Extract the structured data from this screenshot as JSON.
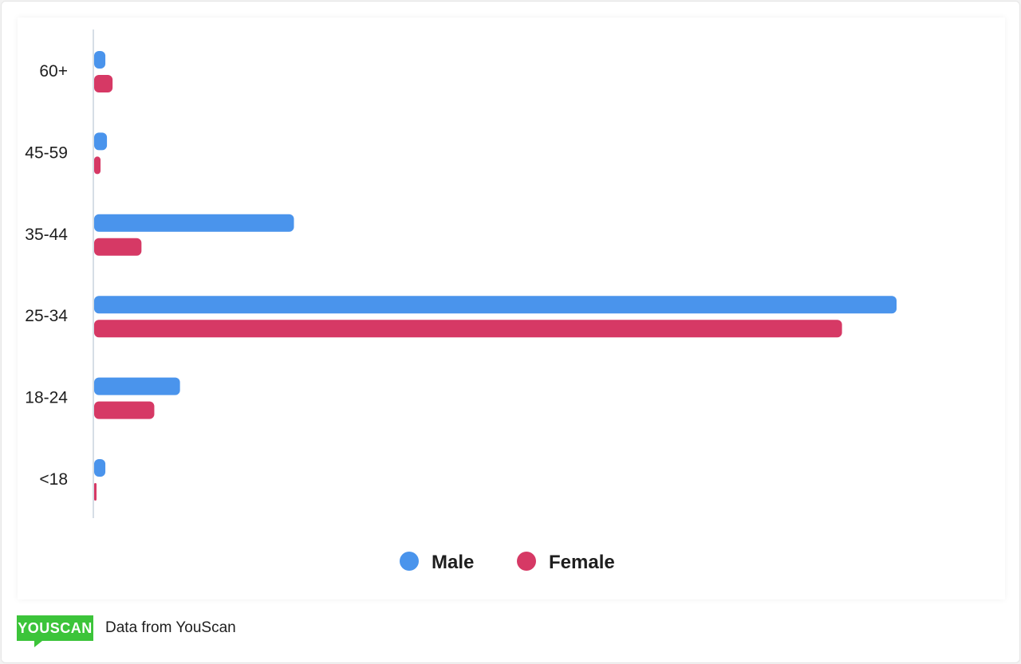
{
  "chart_data": {
    "type": "bar",
    "orientation": "horizontal",
    "categories": [
      "60+",
      "45-59",
      "35-44",
      "25-34",
      "18-24",
      "<18"
    ],
    "series": [
      {
        "name": "Male",
        "color": "#4a94ec",
        "values": [
          1.4,
          1.6,
          24.9,
          100,
          10.7,
          1.4
        ]
      },
      {
        "name": "Female",
        "color": "#d63965",
        "values": [
          2.3,
          0.8,
          5.9,
          93.2,
          7.5,
          0.3
        ]
      }
    ],
    "xlim": [
      0,
      100
    ],
    "grid": false,
    "legend_position": "bottom"
  },
  "footer": {
    "logo_text": "YOUSCAN",
    "source_text": "Data from YouScan"
  }
}
